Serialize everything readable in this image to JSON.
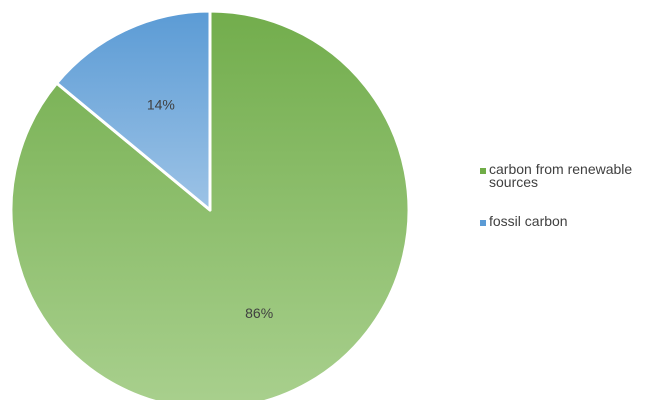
{
  "chart_data": {
    "type": "pie",
    "title": "",
    "slices": [
      {
        "name": "carbon from renewable sources",
        "value": 86,
        "label": "86%",
        "color_top": "#72ad4c",
        "color_bottom": "#a9d08e"
      },
      {
        "name": "fossil carbon",
        "value": 14,
        "label": "14%",
        "color_top": "#5b9bd5",
        "color_bottom": "#9dc3e6"
      }
    ],
    "legend": {
      "position": "right",
      "items": [
        {
          "label": "carbon from renewable sources",
          "color": "#70ad47"
        },
        {
          "label": "fossil carbon",
          "color": "#5b9bd5"
        }
      ]
    }
  }
}
